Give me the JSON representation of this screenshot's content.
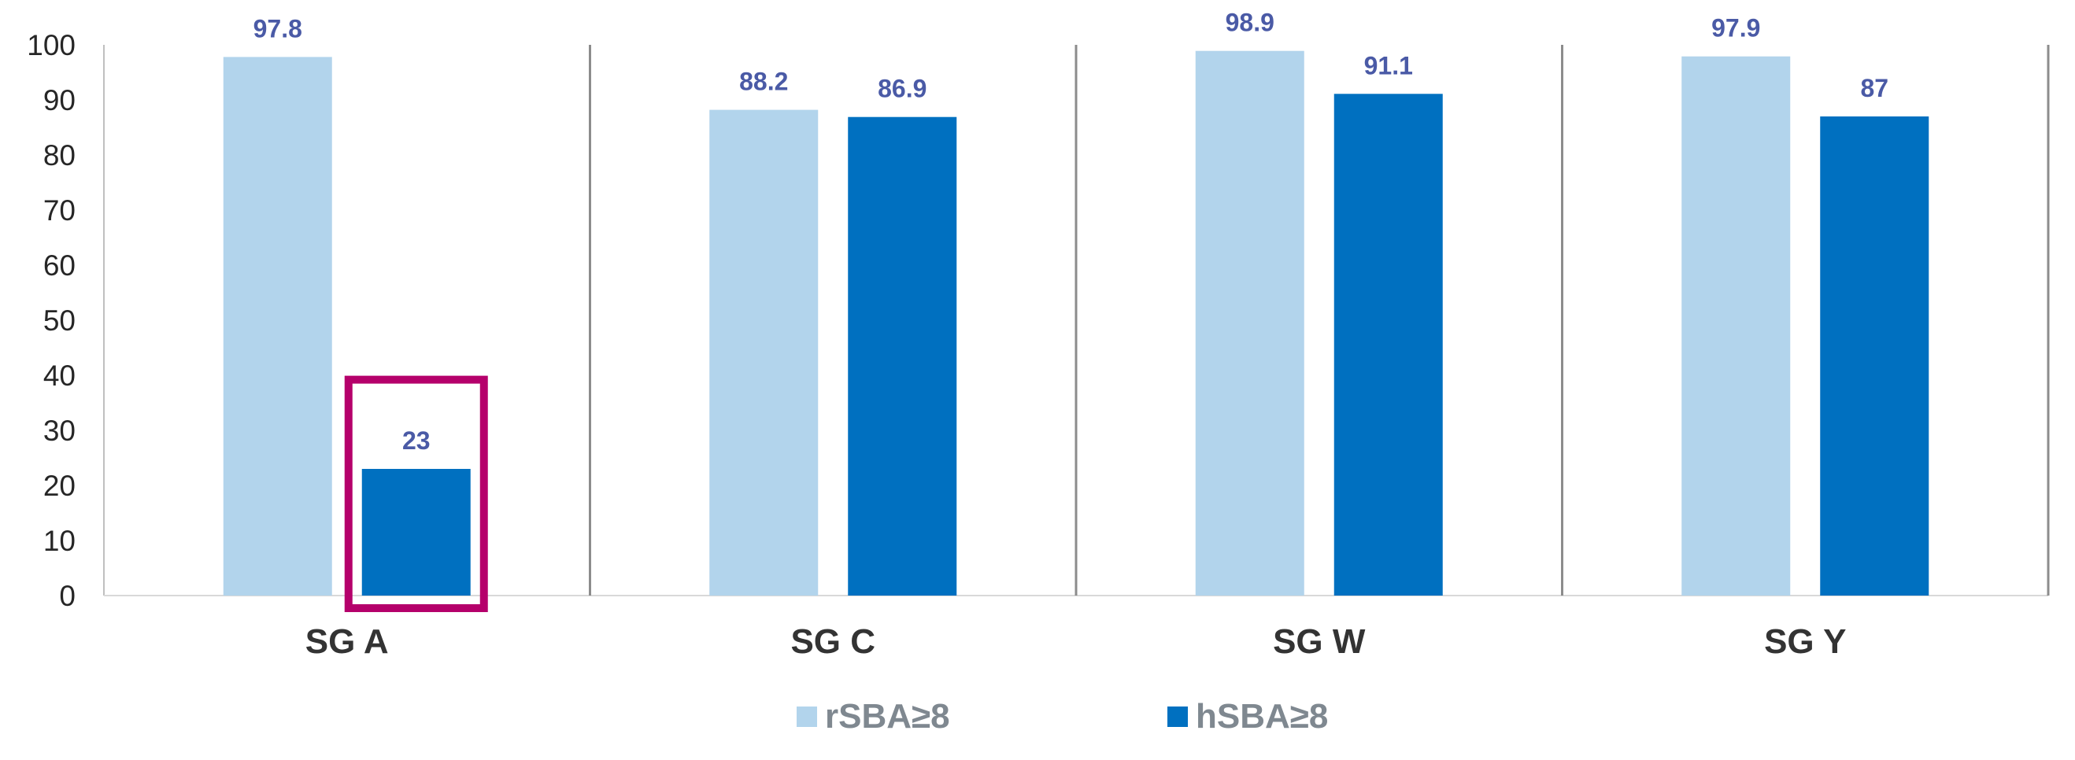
{
  "chart_data": {
    "type": "bar",
    "title": "",
    "xlabel": "",
    "ylabel": "",
    "ylim": [
      0,
      100
    ],
    "y_ticks": [
      "0",
      "10",
      "20",
      "30",
      "40",
      "50",
      "60",
      "70",
      "80",
      "90",
      "100"
    ],
    "categories": [
      "SG A",
      "SG C",
      "SG W",
      "SG Y"
    ],
    "series": [
      {
        "name": "rSBA≥8",
        "color": "#b2d4ec",
        "values": [
          97.8,
          88.2,
          98.9,
          97.9
        ],
        "value_labels": [
          "97.8",
          "88.2",
          "98.9",
          "97.9"
        ]
      },
      {
        "name": "hSBA≥8",
        "color": "#0070c0",
        "values": [
          23,
          86.9,
          91.1,
          87
        ],
        "value_labels": [
          "23",
          "86.9",
          "91.1",
          "87"
        ]
      }
    ],
    "data_label_color": "#4a5aa6",
    "highlight": {
      "series_index": 1,
      "category_index": 0,
      "color": "#b5006b"
    },
    "grid": false,
    "category_separators": true,
    "legend_position": "bottom-center"
  }
}
